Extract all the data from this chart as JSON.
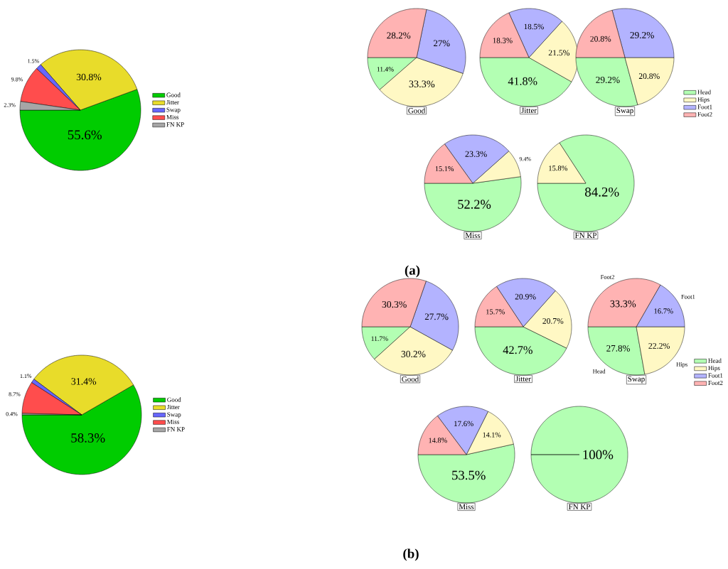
{
  "chart_data": [
    {
      "type": "pie",
      "categories": [
        "Good",
        "Jitter",
        "Swap",
        "Miss",
        "FN KP"
      ],
      "values": [
        55.6,
        30.8,
        1.5,
        9.8,
        2.3
      ],
      "value_labels": [
        "55.6%",
        "30.8%",
        "1.5%",
        "9.8%",
        "2.3%"
      ],
      "colors": [
        "#00cc00",
        "#e8dc2a",
        "#6666ff",
        "#ff4d4d",
        "#a6a6a6"
      ],
      "legend": "right"
    },
    {
      "type": "pie",
      "title": "Good",
      "values": [
        11.4,
        33.3,
        27,
        28.2
      ],
      "value_labels": [
        "11.4%",
        "33.3%",
        "27%",
        "28.2%"
      ],
      "colors": [
        "#b3ffb3",
        "#fff8c4",
        "#b3b3ff",
        "#ffb3b3"
      ]
    },
    {
      "type": "pie",
      "title": "Jitter",
      "values": [
        41.8,
        21.5,
        18.5,
        18.3
      ],
      "value_labels": [
        "41.8%",
        "21.5%",
        "18.5%",
        "18.3%"
      ],
      "colors": [
        "#b3ffb3",
        "#fff8c4",
        "#b3b3ff",
        "#ffb3b3"
      ]
    },
    {
      "type": "pie",
      "title": "Swap",
      "categories": [
        "Head",
        "Hips",
        "Foot1",
        "Foot2"
      ],
      "values": [
        29.2,
        20.8,
        29.2,
        20.8
      ],
      "value_labels": [
        "29.2%",
        "20.8%",
        "29.2%",
        "20.8%"
      ],
      "colors": [
        "#b3ffb3",
        "#fff8c4",
        "#b3b3ff",
        "#ffb3b3"
      ],
      "legend": "bottom right"
    },
    {
      "type": "pie",
      "title": "Miss",
      "values": [
        52.2,
        9.4,
        23.3,
        15.1
      ],
      "value_labels": [
        "52.2%",
        "9.4%",
        "23.3%",
        "15.1%"
      ],
      "colors": [
        "#b3ffb3",
        "#fff8c4",
        "#b3b3ff",
        "#ffb3b3"
      ]
    },
    {
      "type": "pie",
      "title": "FN KP",
      "values": [
        84.2,
        15.8,
        0,
        0
      ],
      "value_labels": [
        "84.2%",
        "15.8%",
        null,
        null
      ],
      "colors": [
        "#b3ffb3",
        "#fff8c4",
        "#b3b3ff",
        "#ffb3b3"
      ]
    },
    {
      "type": "other",
      "title": "**(a)**"
    },
    {
      "type": "pie",
      "categories": [
        "Good",
        "Jitter",
        "Swap",
        "Miss",
        "FN KP"
      ],
      "values": [
        58.3,
        31.4,
        1.1,
        8.7,
        0.4
      ],
      "value_labels": [
        "58.3%",
        "31.4%",
        "1.1%",
        "8.7%",
        "0.4%"
      ],
      "colors": [
        "#00cc00",
        "#e8dc2a",
        "#6666ff",
        "#ff4d4d",
        "#a6a6a6"
      ],
      "legend": "right"
    },
    {
      "type": "pie",
      "title": "Good",
      "values": [
        11.7,
        30.2,
        27.7,
        30.3
      ],
      "value_labels": [
        "11.7%",
        "30.2%",
        "27.7%",
        "30.3%"
      ],
      "colors": [
        "#b3ffb3",
        "#fff8c4",
        "#b3b3ff",
        "#ffb3b3"
      ]
    },
    {
      "type": "pie",
      "title": "Jitter",
      "values": [
        42.7,
        20.7,
        20.9,
        15.7
      ],
      "value_labels": [
        "42.7%",
        "20.7%",
        "20.9%",
        "15.7%"
      ],
      "colors": [
        "#b3ffb3",
        "#fff8c4",
        "#b3b3ff",
        "#ffb3b3"
      ]
    },
    {
      "type": "pie",
      "title": "Swap",
      "categories": [
        "Head",
        "Hips",
        "Foot1",
        "Foot2"
      ],
      "values": [
        27.8,
        22.2,
        16.7,
        33.3
      ],
      "value_labels": [
        "27.8%",
        "22.2%",
        "16.7%",
        "33.3%"
      ],
      "colors": [
        "#b3ffb3",
        "#fff8c4",
        "#b3b3ff",
        "#ffb3b3"
      ],
      "legend": "bottom right",
      "annotations": [
        "Head",
        "Hips",
        "Foot1",
        "Foot2"
      ]
    },
    {
      "type": "pie",
      "title": "Miss",
      "values": [
        53.5,
        14.1,
        17.6,
        14.8
      ],
      "value_labels": [
        "53.5%",
        "14.1%",
        "17.6%",
        "14.8%"
      ],
      "colors": [
        "#b3ffb3",
        "#fff8c4",
        "#b3b3ff",
        "#ffb3b3"
      ]
    },
    {
      "type": "pie",
      "title": "FN KP",
      "values": [
        100,
        0,
        0,
        0
      ],
      "value_labels": [
        "100%",
        null,
        null,
        null
      ],
      "colors": [
        "#b3ffb3",
        "#fff8c4",
        "#b3b3ff",
        "#ffb3b3"
      ]
    },
    {
      "type": "other",
      "title": "**(b)**"
    }
  ]
}
